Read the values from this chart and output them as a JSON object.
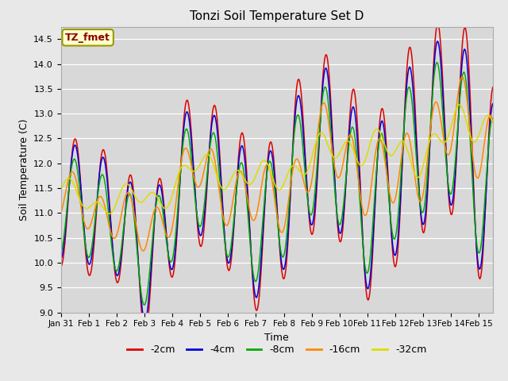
{
  "title": "Tonzi Soil Temperature Set D",
  "xlabel": "Time",
  "ylabel": "Soil Temperature (C)",
  "ylim": [
    9.0,
    14.5
  ],
  "legend_label": "TZ_fmet",
  "legend_entries": [
    "-2cm",
    "-4cm",
    "-8cm",
    "-16cm",
    "-32cm"
  ],
  "line_colors": [
    "#dd0000",
    "#0000dd",
    "#00aa00",
    "#ff8800",
    "#dddd00"
  ],
  "bg_color": "#e8e8e8",
  "plot_bg_color": "#d8d8d8",
  "tick_labels": [
    "Jan 31",
    "Feb 1",
    "Feb 2",
    "Feb 3",
    "Feb 4",
    "Feb 5",
    "Feb 6",
    "Feb 7",
    "Feb 8",
    "Feb 9",
    "Feb 10",
    "Feb 11",
    "Feb 12",
    "Feb 13",
    "Feb 14",
    "Feb 15"
  ],
  "yticks": [
    9.0,
    9.5,
    10.0,
    10.5,
    11.0,
    11.5,
    12.0,
    12.5,
    13.0,
    13.5,
    14.0,
    14.5
  ]
}
